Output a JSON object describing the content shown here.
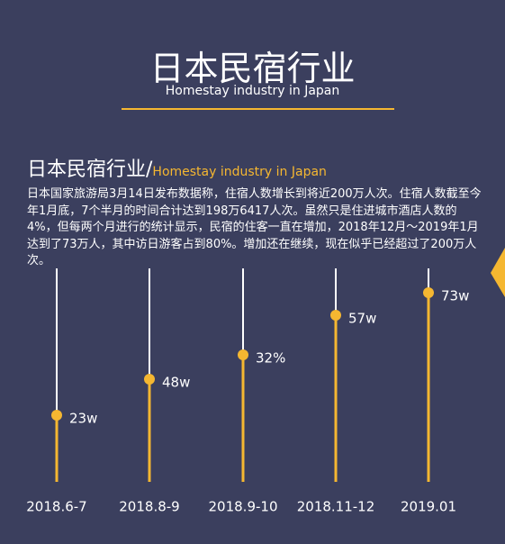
{
  "header": {
    "title": "日本民宿行业",
    "subtitle": "Homestay industry in Japan"
  },
  "section": {
    "title": "日本民宿行业/",
    "subtitle": "Homestay industry in Japan",
    "body": "日本国家旅游局3月14日发布数据称，住宿人数增长到将近200万人次。住宿人数截至今年1月底，7个半月的时间合计达到198万6417人次。虽然只是住进城市酒店人数的4%，但每两个月进行的统计显示，民宿的住客一直在增加，2018年12月～2019年1月达到了73万人，其中访日游客占到80%。增加还在继续，现在似乎已经超过了200万人次。"
  },
  "timeline": {
    "items": [
      {
        "date": "2018.6-7",
        "label": "23w"
      },
      {
        "date": "2018.8-9",
        "label": "48w"
      },
      {
        "date": "2018.9-10",
        "label": "32%"
      },
      {
        "date": "2018.11-12",
        "label": "57w"
      },
      {
        "date": "2019.01",
        "label": "73w"
      }
    ]
  }
}
